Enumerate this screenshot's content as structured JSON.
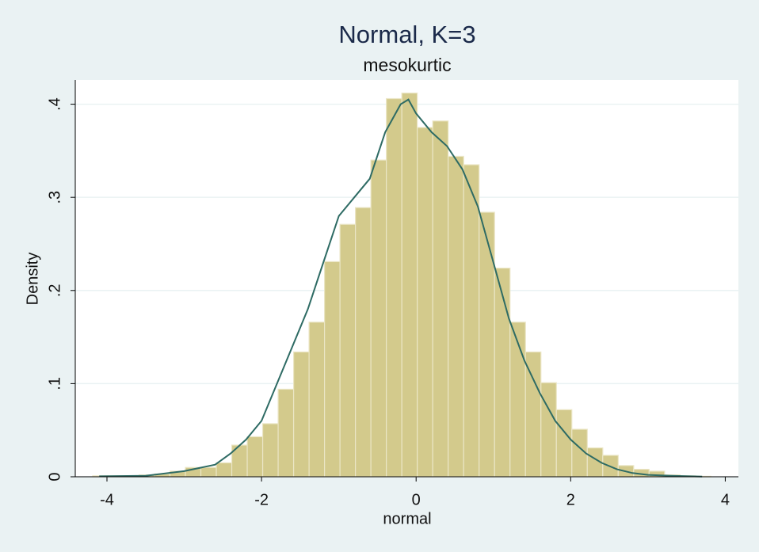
{
  "chart_data": {
    "type": "histogram",
    "title": "Normal, K=3",
    "subtitle": "mesokurtic",
    "xlabel": "normal",
    "ylabel": "Density",
    "bins": [
      -4.185,
      -3.985,
      -3.785,
      -3.585,
      -3.385,
      -3.185,
      -2.985,
      -2.785,
      -2.585,
      -2.385,
      -2.185,
      -1.985,
      -1.785,
      -1.585,
      -1.385,
      -1.185,
      -0.985,
      -0.785,
      -0.585,
      -0.385,
      -0.185,
      0.015,
      0.215,
      0.415,
      0.615,
      0.815,
      1.015,
      1.215,
      1.415,
      1.615,
      1.815,
      2.015,
      2.215,
      2.415,
      2.615,
      2.815,
      3.015,
      3.215,
      3.415,
      3.615,
      3.815
    ],
    "values": [
      0.001,
      0.001,
      0.001,
      0.002,
      0.003,
      0.006,
      0.01,
      0.01,
      0.015,
      0.034,
      0.043,
      0.057,
      0.094,
      0.134,
      0.166,
      0.231,
      0.271,
      0.289,
      0.34,
      0.406,
      0.412,
      0.375,
      0.382,
      0.344,
      0.335,
      0.284,
      0.224,
      0.166,
      0.134,
      0.101,
      0.072,
      0.051,
      0.031,
      0.023,
      0.012,
      0.008,
      0.006,
      0.002,
      0.001,
      0.0005
    ],
    "color": "#d3ca8c",
    "density": {
      "color": "#2e6b64",
      "x": [
        -4.1,
        -3.5,
        -3.0,
        -2.6,
        -2.4,
        -2.2,
        -2.0,
        -1.8,
        -1.6,
        -1.4,
        -1.2,
        -1.0,
        -0.8,
        -0.6,
        -0.4,
        -0.2,
        -0.1,
        0.0,
        0.2,
        0.4,
        0.6,
        0.8,
        1.0,
        1.2,
        1.4,
        1.6,
        1.8,
        2.0,
        2.2,
        2.4,
        2.6,
        2.8,
        3.0,
        3.3,
        3.7
      ],
      "y": [
        0.0005,
        0.001,
        0.006,
        0.013,
        0.025,
        0.04,
        0.06,
        0.1,
        0.14,
        0.18,
        0.23,
        0.28,
        0.3,
        0.32,
        0.37,
        0.4,
        0.405,
        0.39,
        0.37,
        0.355,
        0.33,
        0.29,
        0.23,
        0.17,
        0.125,
        0.09,
        0.06,
        0.04,
        0.025,
        0.015,
        0.008,
        0.004,
        0.002,
        0.001,
        0.0002
      ]
    },
    "xlim": [
      -4.41,
      4.17
    ],
    "ylim": [
      0,
      0.426
    ],
    "xticks": [
      -4,
      -2,
      0,
      2,
      4
    ],
    "yticks": [
      0,
      {
        "value": 0.1,
        "label": ".1"
      },
      {
        "value": 0.2,
        "label": ".2"
      },
      {
        "value": 0.3,
        "label": ".3"
      },
      {
        "value": 0.4,
        "label": ".4"
      }
    ],
    "grid": true
  }
}
